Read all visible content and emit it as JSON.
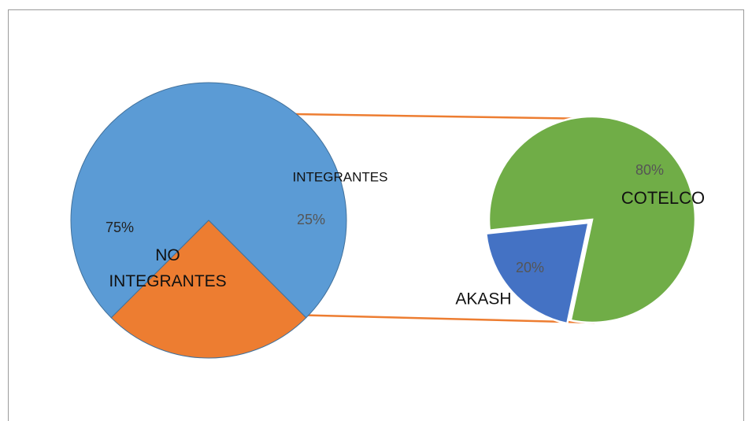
{
  "chart_data": [
    {
      "type": "pie",
      "categories": [
        "NO INTEGRANTES",
        "INTEGRANTES"
      ],
      "values": [
        75,
        25
      ],
      "value_labels": [
        "75%",
        "25%"
      ],
      "colors": [
        "#5b9bd5",
        "#ed7d31"
      ]
    },
    {
      "type": "pie",
      "categories": [
        "COTELCO",
        "AKASH"
      ],
      "values": [
        80,
        20
      ],
      "value_labels": [
        "80%",
        "20%"
      ],
      "colors": [
        "#70ad47",
        "#4472c4"
      ]
    }
  ]
}
